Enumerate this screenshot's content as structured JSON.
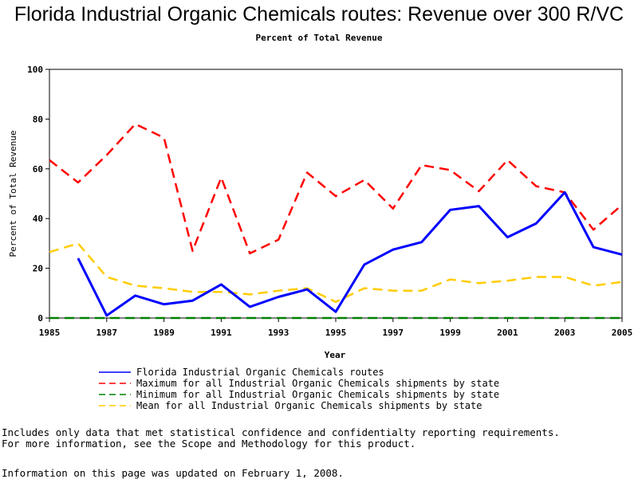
{
  "chart_data": {
    "type": "line",
    "title": "Florida Industrial Organic Chemicals routes: Revenue over 300 R/VC",
    "subtitle": "Percent of Total Revenue",
    "xlabel": "Year",
    "ylabel": "Percent of Total Revenue",
    "xlim": [
      1985,
      2005
    ],
    "ylim": [
      0,
      100
    ],
    "x_ticks": [
      "1985",
      "1987",
      "1989",
      "1991",
      "1993",
      "1995",
      "1997",
      "1999",
      "2001",
      "2003",
      "2005"
    ],
    "y_ticks": [
      "0",
      "20",
      "40",
      "60",
      "80",
      "100"
    ],
    "series": [
      {
        "name": "Florida Industrial Organic Chemicals routes",
        "color": "#0000ff",
        "style": "solid",
        "x": [
          1986,
          1987,
          1988,
          1989,
          1990,
          1991,
          1992,
          1993,
          1994,
          1995,
          1996,
          1997,
          1998,
          1999,
          2000,
          2001,
          2002,
          2003,
          2004,
          2005
        ],
        "values": [
          24,
          1,
          9,
          5.5,
          7,
          13.5,
          4.5,
          8.5,
          11.5,
          2.5,
          21.5,
          27.5,
          30.5,
          43.5,
          45,
          32.5,
          38,
          50.5,
          28.5,
          25.5
        ]
      },
      {
        "name": "Maximum for all Industrial Organic Chemicals shipments by state",
        "color": "#ff0000",
        "style": "dashed",
        "x": [
          1985,
          1986,
          1987,
          1988,
          1989,
          1990,
          1991,
          1992,
          1993,
          1994,
          1995,
          1996,
          1997,
          1998,
          1999,
          2000,
          2001,
          2002,
          2003,
          2004,
          2005
        ],
        "values": [
          63.5,
          54.5,
          65.5,
          78,
          72.5,
          27,
          56.5,
          26,
          31.5,
          58.5,
          49,
          55.5,
          44,
          61.5,
          59.5,
          51,
          63.5,
          53,
          50.5,
          35.5,
          45.5
        ]
      },
      {
        "name": "Minimum for all Industrial Organic Chemicals shipments by state",
        "color": "#008000",
        "style": "dashed",
        "x": [
          1985,
          1986,
          1987,
          1988,
          1989,
          1990,
          1991,
          1992,
          1993,
          1994,
          1995,
          1996,
          1997,
          1998,
          1999,
          2000,
          2001,
          2002,
          2003,
          2004,
          2005
        ],
        "values": [
          0,
          0,
          0,
          0,
          0,
          0,
          0,
          0,
          0,
          0,
          0,
          0,
          0,
          0,
          0,
          0,
          0,
          0,
          0,
          0,
          0
        ]
      },
      {
        "name": "Mean for all Industrial Organic Chemicals shipments by state",
        "color": "#ffcc00",
        "style": "dashed",
        "x": [
          1985,
          1986,
          1987,
          1988,
          1989,
          1990,
          1991,
          1992,
          1993,
          1994,
          1995,
          1996,
          1997,
          1998,
          1999,
          2000,
          2001,
          2002,
          2003,
          2004,
          2005
        ],
        "values": [
          26.5,
          30,
          16.5,
          13,
          12,
          10.5,
          10.5,
          9.5,
          11,
          12,
          6.5,
          12,
          11,
          11,
          15.5,
          14,
          15,
          16.5,
          16.5,
          13,
          14.5
        ]
      }
    ]
  },
  "notes": {
    "line1": "Includes only data that met statistical confidence and confidentialty reporting requirements.",
    "line2": "For more information, see the Scope and Methodology for this product.",
    "updated": "Information on this page was updated on February 1, 2008."
  }
}
